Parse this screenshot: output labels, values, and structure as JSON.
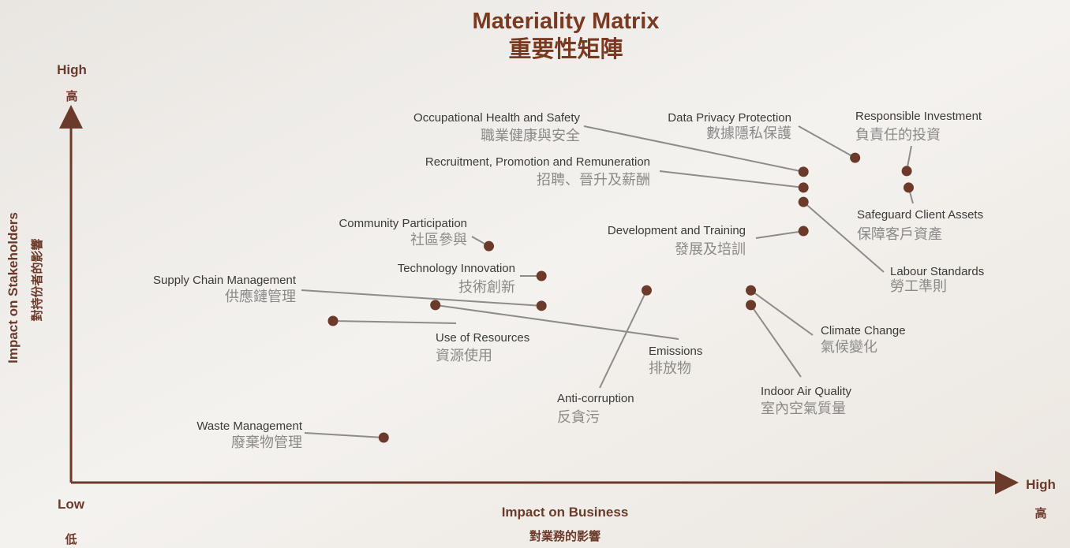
{
  "chart_data": {
    "type": "scatter",
    "title": "Materiality Matrix",
    "subtitle": "重要性矩陣",
    "x_label": "Impact on Business",
    "x_label_zh": "對業務的影響",
    "y_label": "Impact on Stakeholders",
    "y_label_zh": "對持份者的影響",
    "y_high": "High",
    "y_high_zh": "高",
    "low": "Low",
    "low_zh": "低",
    "x_high": "High",
    "x_high_zh": "高",
    "xlim": [
      0,
      10
    ],
    "ylim": [
      0,
      10
    ],
    "color": "#6b3a2a",
    "labels": [
      "Occupational Health and Safety",
      "Recruitment, Promotion and Remuneration",
      "Labour Standards",
      "Development and Training",
      "Data Privacy Protection",
      "Responsible Investment",
      "Safeguard Client Assets",
      "Community Participation",
      "Technology Innovation",
      "Supply Chain Management",
      "Use of Resources",
      "Emissions",
      "Anti-corruption",
      "Climate Change",
      "Indoor Air Quality",
      "Waste Management"
    ],
    "labels_zh": [
      "職業健康與安全",
      "招聘、晉升及薪酬",
      "勞工準則",
      "發展及培訓",
      "數據隱私保護",
      "負責任的投資",
      "保障客戶資產",
      "社區參與",
      "技術創新",
      "供應鏈管理",
      "資源使用",
      "排放物",
      "反貪污",
      "氣候變化",
      "室內空氣質量",
      "廢棄物管理"
    ],
    "x": [
      7.8,
      7.8,
      7.8,
      7.8,
      8.35,
      8.9,
      8.92,
      4.45,
      5.01,
      5.01,
      2.79,
      3.88,
      6.13,
      7.24,
      7.24,
      3.33
    ],
    "values": [
      8.44,
      8.01,
      7.62,
      6.83,
      8.82,
      8.46,
      8.01,
      6.42,
      5.61,
      4.8,
      4.39,
      4.82,
      5.22,
      5.22,
      4.82,
      1.22
    ]
  }
}
